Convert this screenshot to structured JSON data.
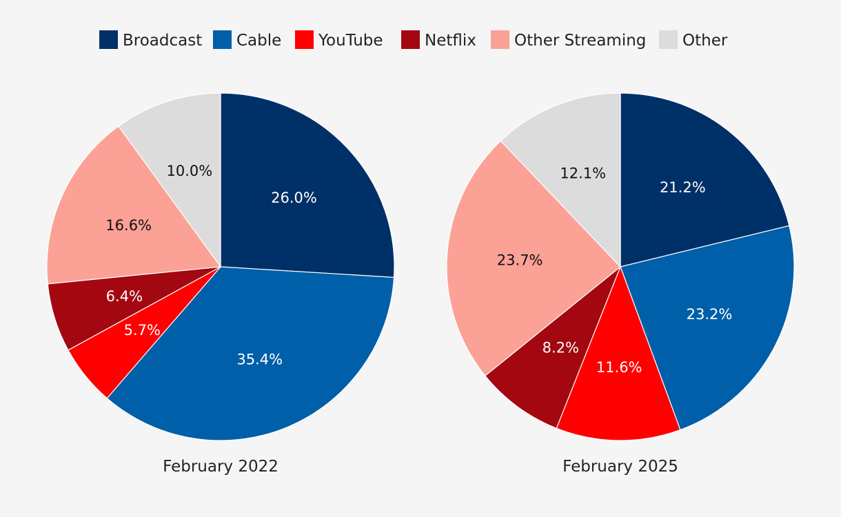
{
  "legend": [
    {
      "name": "Broadcast",
      "color": "#003068"
    },
    {
      "name": "Cable",
      "color": "#005fa9"
    },
    {
      "name": "YouTube",
      "color": "#ff0000"
    },
    {
      "name": "Netflix",
      "color": "#a30811"
    },
    {
      "name": "Other Streaming",
      "color": "#fca196"
    },
    {
      "name": "Other",
      "color": "#dcdcdc"
    }
  ],
  "chart_data": [
    {
      "type": "pie",
      "title": "February 2022",
      "categories": [
        "Broadcast",
        "Cable",
        "YouTube",
        "Netflix",
        "Other Streaming",
        "Other"
      ],
      "values": [
        26.0,
        35.4,
        5.7,
        6.4,
        16.6,
        10.0
      ],
      "labels": [
        "26.0%",
        "35.4%",
        "5.7%",
        "6.4%",
        "16.6%",
        "10.0%"
      ],
      "start_angle": "12 o'clock",
      "direction": "clockwise"
    },
    {
      "type": "pie",
      "title": "February 2025",
      "categories": [
        "Broadcast",
        "Cable",
        "YouTube",
        "Netflix",
        "Other Streaming",
        "Other"
      ],
      "values": [
        21.2,
        23.2,
        11.6,
        8.2,
        23.7,
        12.1
      ],
      "labels": [
        "21.2%",
        "23.2%",
        "11.6%",
        "8.2%",
        "23.7%",
        "12.1%"
      ],
      "start_angle": "12 o'clock",
      "direction": "clockwise"
    }
  ]
}
